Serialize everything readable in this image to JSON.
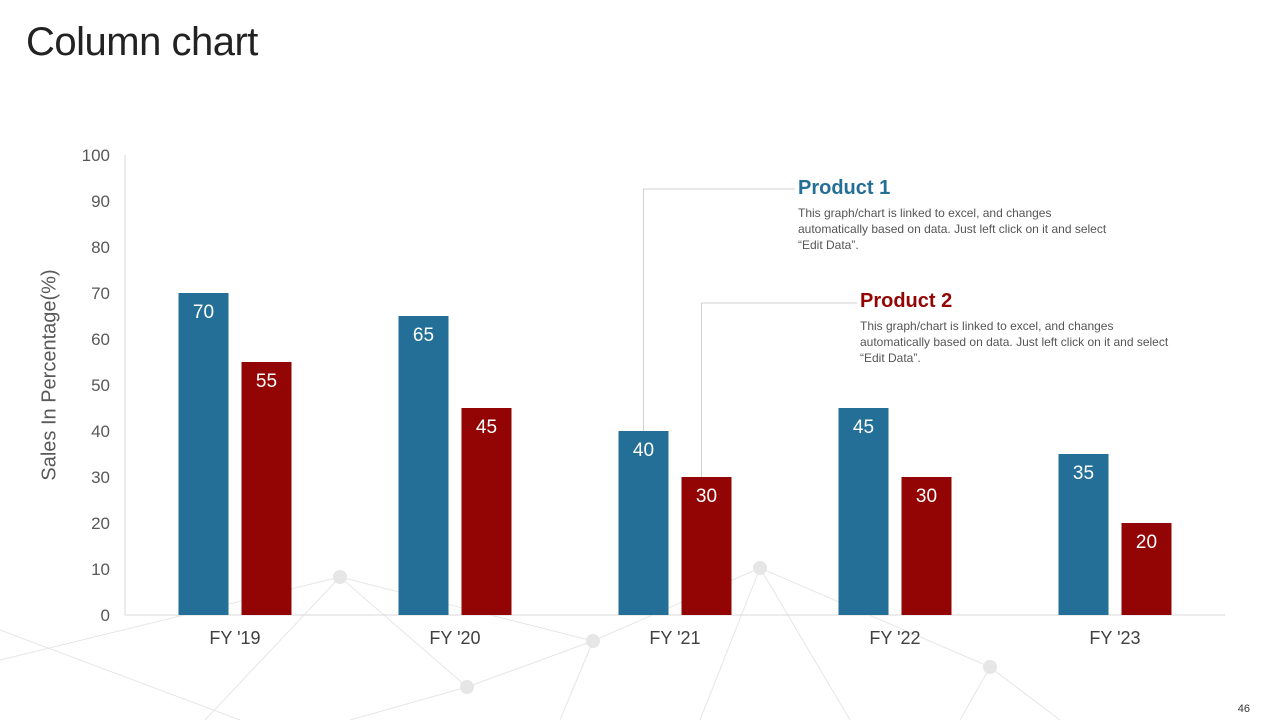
{
  "slide": {
    "title": "Column chart",
    "page_number": "46"
  },
  "colors": {
    "product1": "#236f97",
    "product2": "#930505"
  },
  "callouts": [
    {
      "title": "Product 1",
      "body": "This graph/chart is linked to excel, and changes automatically based on data. Just left click on it and select “Edit Data”."
    },
    {
      "title": "Product 2",
      "body": "This graph/chart is linked to excel, and changes automatically based on data. Just left click on it and select “Edit Data”."
    }
  ],
  "chart_data": {
    "type": "bar",
    "title": "",
    "xlabel": "",
    "ylabel": "Sales In Percentage(%)",
    "categories": [
      "FY '19",
      "FY '20",
      "FY '21",
      "FY '22",
      "FY '23"
    ],
    "series": [
      {
        "name": "Product 1",
        "values": [
          70,
          65,
          40,
          45,
          35
        ]
      },
      {
        "name": "Product 2",
        "values": [
          55,
          45,
          30,
          30,
          20
        ]
      }
    ],
    "ylim": [
      0,
      100
    ],
    "yticks": [
      0,
      10,
      20,
      30,
      40,
      50,
      60,
      70,
      80,
      90,
      100
    ],
    "grid": false,
    "data_labels": true
  }
}
